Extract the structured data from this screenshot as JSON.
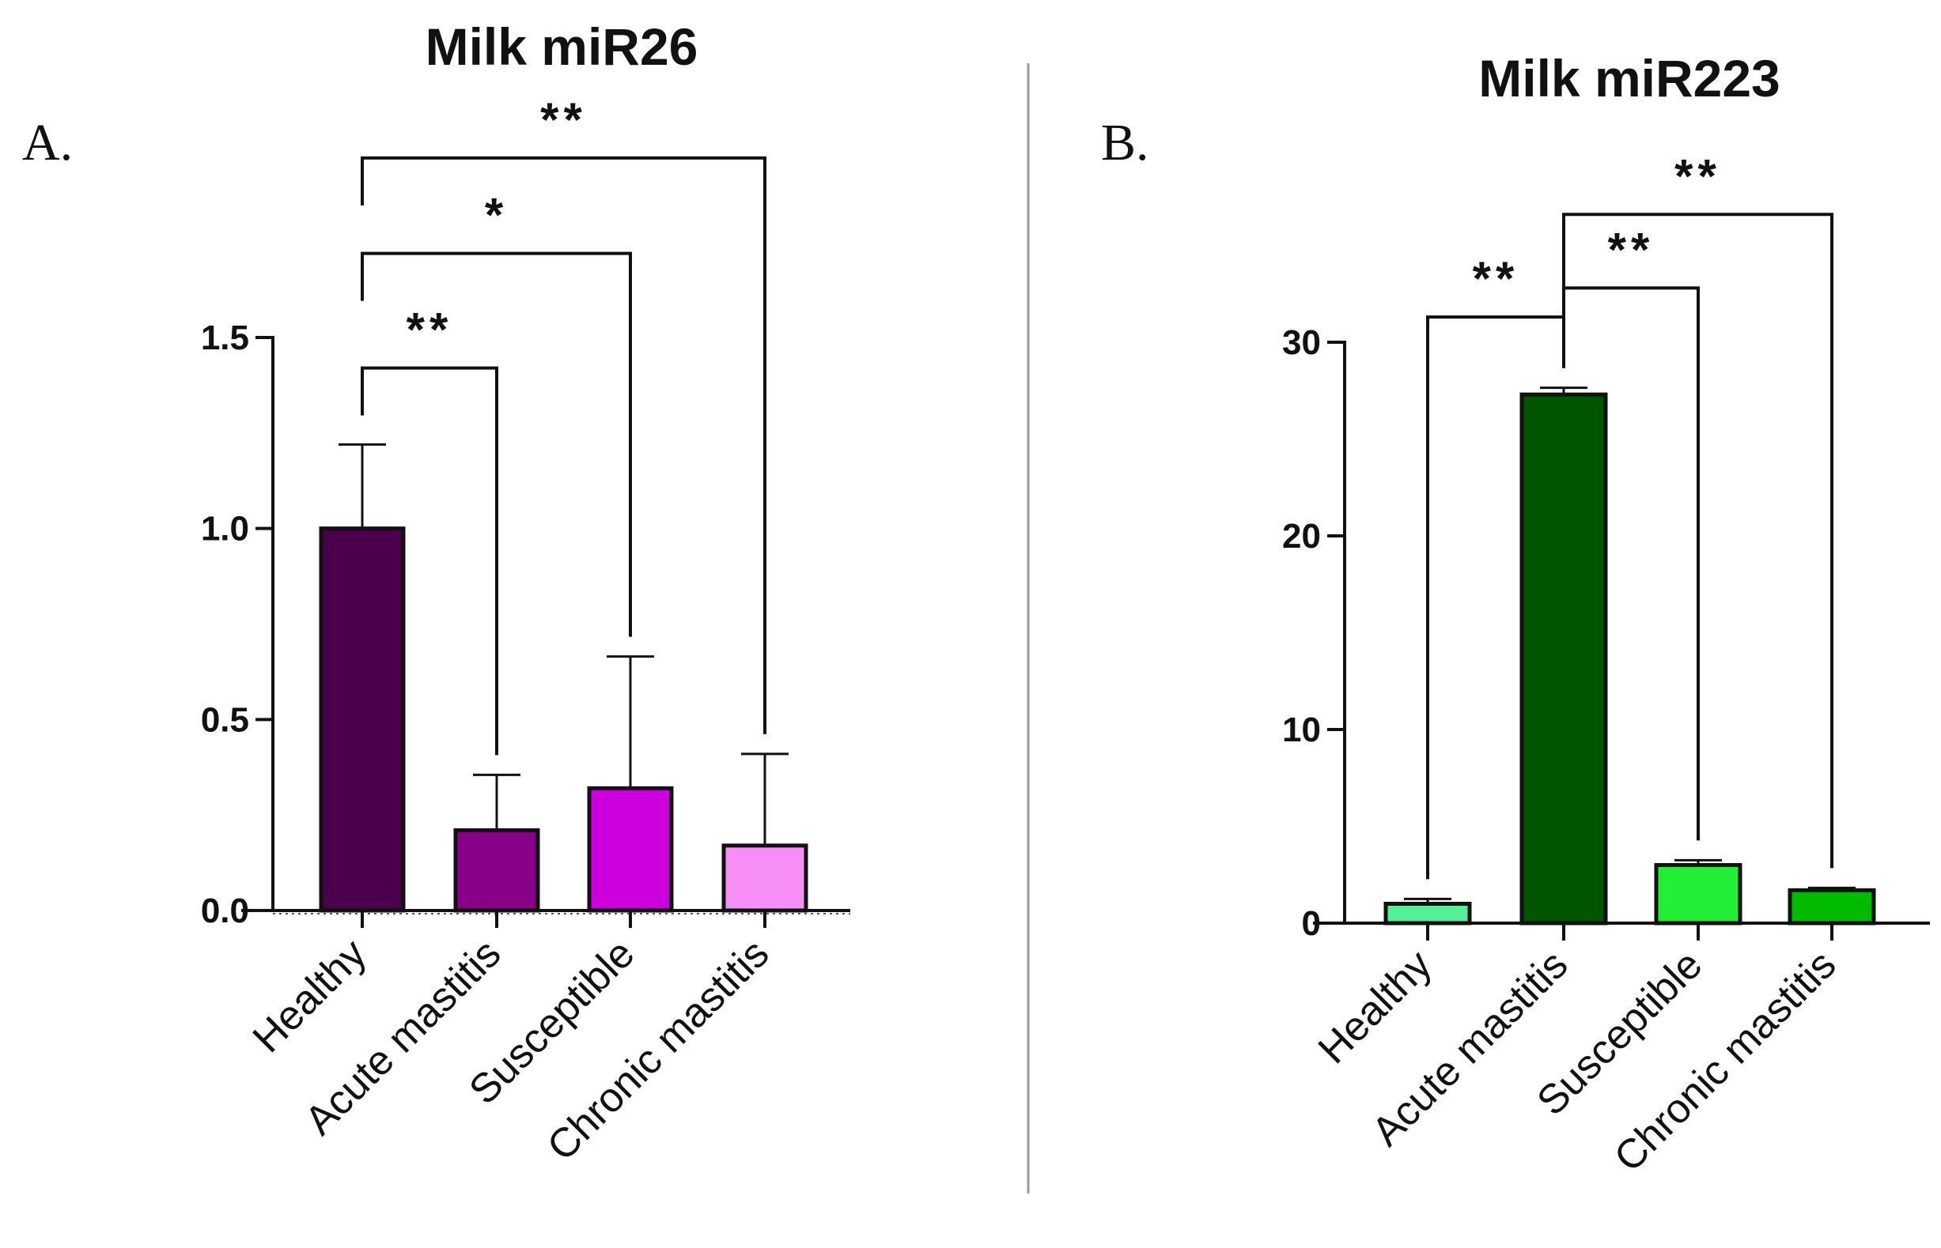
{
  "chart_data": [
    {
      "panel": "A.",
      "type": "bar",
      "title": "Milk miR26",
      "categories": [
        "Healthy",
        "Acute mastitis",
        "Susceptible",
        "Chronic mastitis"
      ],
      "values": [
        1.0,
        0.21,
        0.32,
        0.17
      ],
      "errors": [
        0.22,
        0.145,
        0.345,
        0.24
      ],
      "colors": [
        "#4a004a",
        "#880088",
        "#cc00dd",
        "#f58ef5"
      ],
      "ylim": [
        0,
        1.5
      ],
      "yticks": [
        0.0,
        0.5,
        1.0,
        1.5
      ],
      "tick_labels": [
        "0.0",
        "0.5",
        "1.0",
        "1.5"
      ],
      "xlabel": "",
      "ylabel": "",
      "significance": [
        {
          "from": 0,
          "to": 1,
          "label": "**",
          "y_data": 1.42
        },
        {
          "from": 0,
          "to": 2,
          "label": "*",
          "y_data": 1.72
        },
        {
          "from": 0,
          "to": 3,
          "label": "**",
          "y_data": 1.97
        }
      ]
    },
    {
      "panel": "B.",
      "type": "bar",
      "title": "Milk miR223",
      "categories": [
        "Healthy",
        "Acute mastitis",
        "Susceptible",
        "Chronic mastitis"
      ],
      "values": [
        1.0,
        27.3,
        3.0,
        1.7
      ],
      "errors": [
        0.25,
        0.35,
        0.25,
        0.12
      ],
      "colors": [
        "#55ee99",
        "#005500",
        "#22ee33",
        "#00bb00"
      ],
      "ylim": [
        0,
        30
      ],
      "yticks": [
        0,
        10,
        20,
        30
      ],
      "tick_labels": [
        "0",
        "10",
        "20",
        "30"
      ],
      "xlabel": "",
      "ylabel": "",
      "significance": [
        {
          "from": 0,
          "to": 1,
          "label": "**",
          "y_data": 31.3
        },
        {
          "from": 1,
          "to": 2,
          "label": "**",
          "y_data": 32.8
        },
        {
          "from": 1,
          "to": 3,
          "label": "**",
          "y_data": 36.6
        }
      ]
    }
  ]
}
